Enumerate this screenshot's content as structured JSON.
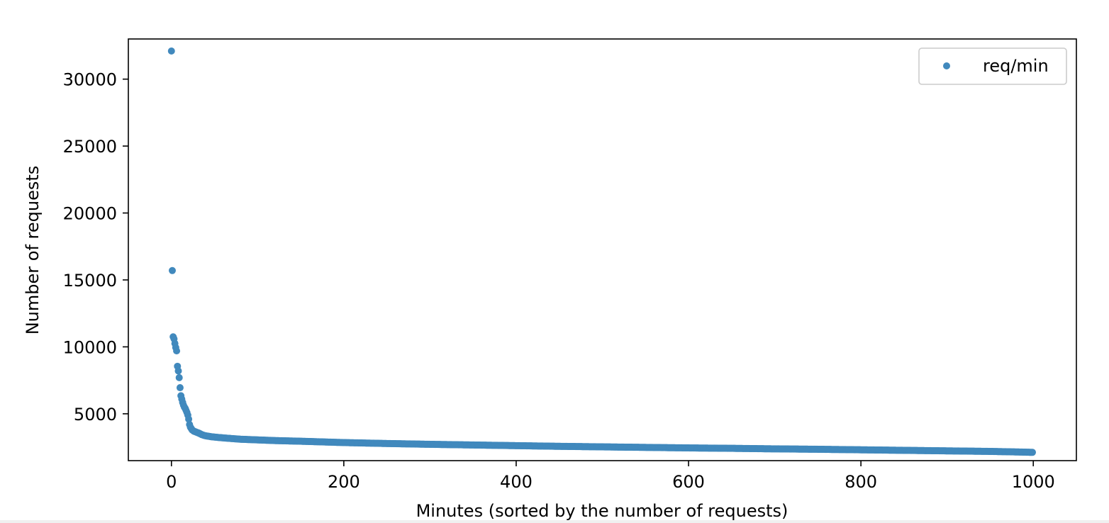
{
  "chart_data": {
    "type": "scatter",
    "title": "",
    "xlabel": "Minutes (sorted by the number of requests)",
    "ylabel": "Number of requests",
    "xlim": [
      -50,
      1050
    ],
    "ylim": [
      1500,
      33000
    ],
    "xticks": [
      0,
      200,
      400,
      600,
      800,
      1000
    ],
    "yticks": [
      5000,
      10000,
      15000,
      20000,
      25000,
      30000
    ],
    "grid": false,
    "legend_position": "top-right",
    "series": [
      {
        "name": "req/min",
        "color": "#4189bd",
        "marker": "circle",
        "points": [
          [
            0,
            32100
          ],
          [
            1,
            15700
          ],
          [
            2,
            10750
          ],
          [
            3,
            10600
          ],
          [
            4,
            10250
          ],
          [
            5,
            9950
          ],
          [
            6,
            9700
          ],
          [
            7,
            8550
          ],
          [
            8,
            8200
          ],
          [
            9,
            7700
          ],
          [
            10,
            6950
          ],
          [
            11,
            6350
          ],
          [
            12,
            6100
          ],
          [
            13,
            5850
          ],
          [
            14,
            5650
          ],
          [
            15,
            5500
          ],
          [
            16,
            5400
          ],
          [
            17,
            5250
          ],
          [
            18,
            5100
          ],
          [
            19,
            4900
          ],
          [
            20,
            4600
          ],
          [
            21,
            4200
          ],
          [
            22,
            4000
          ],
          [
            23,
            3900
          ],
          [
            24,
            3800
          ],
          [
            26,
            3700
          ],
          [
            28,
            3650
          ],
          [
            30,
            3600
          ],
          [
            32,
            3550
          ],
          [
            35,
            3450
          ],
          [
            38,
            3380
          ],
          [
            42,
            3330
          ],
          [
            46,
            3290
          ],
          [
            50,
            3260
          ],
          [
            55,
            3230
          ],
          [
            60,
            3200
          ],
          [
            70,
            3150
          ],
          [
            80,
            3100
          ],
          [
            100,
            3050
          ],
          [
            120,
            3000
          ],
          [
            150,
            2950
          ],
          [
            200,
            2850
          ],
          [
            250,
            2780
          ],
          [
            300,
            2720
          ],
          [
            350,
            2670
          ],
          [
            400,
            2620
          ],
          [
            450,
            2570
          ],
          [
            500,
            2530
          ],
          [
            550,
            2490
          ],
          [
            600,
            2450
          ],
          [
            650,
            2420
          ],
          [
            700,
            2380
          ],
          [
            750,
            2350
          ],
          [
            800,
            2310
          ],
          [
            850,
            2270
          ],
          [
            900,
            2230
          ],
          [
            950,
            2190
          ],
          [
            980,
            2150
          ],
          [
            999,
            2120
          ]
        ]
      }
    ]
  }
}
